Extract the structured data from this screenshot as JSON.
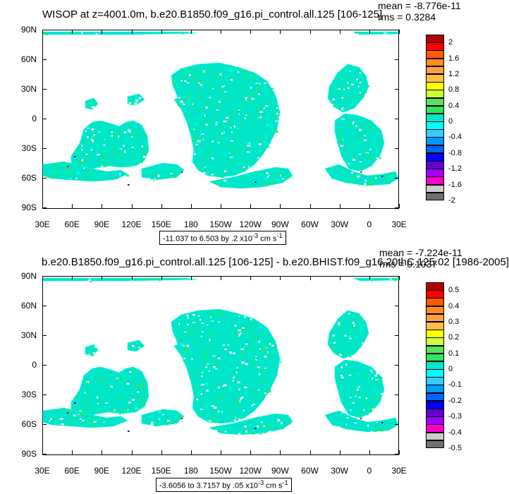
{
  "colors": {
    "land_mask": "#ffffff",
    "ocean_dominant": "#00e6c8",
    "ocean_secondary": "#00ffff",
    "ocean_speckle": "#2ee65a",
    "extreme_blue": "#0000ff",
    "extreme_red": "#ff0000",
    "frame": "#000000"
  },
  "panels": [
    {
      "id": "top",
      "title": "WISOP at z=4001.0m, b.e20.B1850.f09_g16.pi_control.all.125 [106-125]",
      "stats": {
        "mean": "mean = -8.776e-11",
        "rms": "rms = 0.3284"
      },
      "range_text": "-11.037 to 6.503 by .2 x10",
      "range_exp": "-3",
      "range_unit": " cm s",
      "range_unit_exp": "-1",
      "colorbar": {
        "labels": [
          "2",
          "1.6",
          "1.2",
          "0.8",
          "0.4",
          "0",
          "-0.4",
          "-0.8",
          "-1.2",
          "-1.6",
          "-2"
        ],
        "colors": [
          "#b30000",
          "#ff0000",
          "#ff5a00",
          "#ff8c1a",
          "#ffa040",
          "#ffbf40",
          "#ffff00",
          "#ccff33",
          "#5be05b",
          "#2ee65a",
          "#00e6c8",
          "#00ffff",
          "#33ccff",
          "#0099ff",
          "#0066ff",
          "#0000ff",
          "#6600cc",
          "#a000ff",
          "#ff00cc",
          "#cccccc",
          "#707070"
        ]
      }
    },
    {
      "id": "bottom",
      "title": "b.e20.B1850.f09_g16.pi_control.all.125 [106-125] - b.e20.BHIST.f09_g16.20thC.125.02 [1986-2005]",
      "stats": {
        "mean": "mean = -7.224e-11",
        "rms": "rms = 0.1037"
      },
      "range_text": "-3.6056 to 3.7157 by .05 x10",
      "range_exp": "-3",
      "range_unit": " cm s",
      "range_unit_exp": "-1",
      "colorbar": {
        "labels": [
          "0.5",
          "0.4",
          "0.3",
          "0.2",
          "0.1",
          "0",
          "-0.1",
          "-0.2",
          "-0.3",
          "-0.4",
          "-0.5"
        ],
        "colors": [
          "#b30000",
          "#ff0000",
          "#ff5a00",
          "#ff8c1a",
          "#ffa040",
          "#ffbf40",
          "#ffff00",
          "#ccff33",
          "#5be05b",
          "#2ee65a",
          "#00e6c8",
          "#00ffff",
          "#33ccff",
          "#0099ff",
          "#0066ff",
          "#0000ff",
          "#6600cc",
          "#a000ff",
          "#ff00cc",
          "#cccccc",
          "#707070"
        ]
      }
    }
  ],
  "axes": {
    "y_labels": [
      "90N",
      "60N",
      "30N",
      "0",
      "30S",
      "60S",
      "90S"
    ],
    "x_labels": [
      "30E",
      "60E",
      "90E",
      "120E",
      "150E",
      "180",
      "150W",
      "120W",
      "90W",
      "60W",
      "30W",
      "0",
      "30E"
    ]
  }
}
